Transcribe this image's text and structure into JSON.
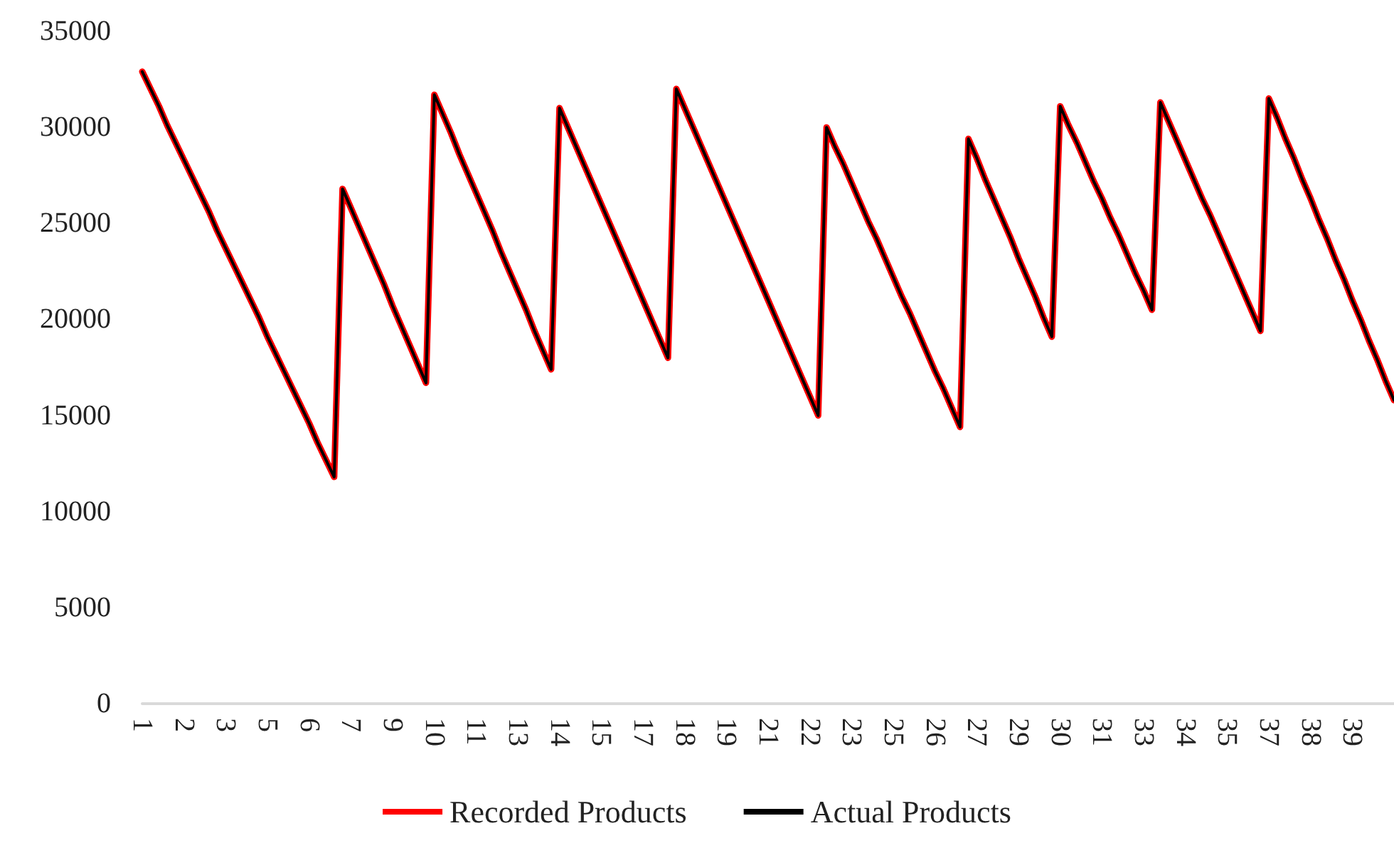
{
  "chart_data": {
    "type": "line",
    "categories": [
      "1",
      null,
      null,
      null,
      null,
      "2",
      null,
      null,
      null,
      null,
      "3",
      null,
      null,
      null,
      null,
      "5",
      null,
      null,
      null,
      null,
      "6",
      null,
      null,
      null,
      null,
      "7",
      null,
      null,
      null,
      null,
      "9",
      null,
      null,
      null,
      null,
      "10",
      null,
      null,
      null,
      null,
      "11",
      null,
      null,
      null,
      null,
      "13",
      null,
      null,
      null,
      null,
      "14",
      null,
      null,
      null,
      null,
      "15",
      null,
      null,
      null,
      null,
      "17",
      null,
      null,
      null,
      null,
      "18",
      null,
      null,
      null,
      null,
      "19",
      null,
      null,
      null,
      null,
      "21",
      null,
      null,
      null,
      null,
      "22",
      null,
      null,
      null,
      null,
      "23",
      null,
      null,
      null,
      null,
      "25",
      null,
      null,
      null,
      null,
      "26",
      null,
      null,
      null,
      null,
      "27",
      null,
      null,
      null,
      null,
      "29",
      null,
      null,
      null,
      null,
      "30",
      null,
      null,
      null,
      null,
      "31",
      null,
      null,
      null,
      null,
      "33",
      null,
      null,
      null,
      null,
      "34",
      null,
      null,
      null,
      null,
      "35",
      null,
      null,
      null,
      null,
      "37",
      null,
      null,
      null,
      null,
      "38",
      null,
      null,
      null,
      null,
      "39",
      null,
      null,
      null,
      null,
      null
    ],
    "series": [
      {
        "name": "Recorded Products",
        "color": "#ff0000",
        "values": [
          32900,
          32000,
          31100,
          30100,
          29200,
          28300,
          27400,
          26500,
          25600,
          24600,
          23700,
          22800,
          21900,
          21000,
          20100,
          19100,
          18200,
          17300,
          16400,
          15500,
          14600,
          13600,
          12700,
          11800,
          26800,
          25800,
          24800,
          23800,
          22800,
          21800,
          20700,
          19700,
          18700,
          17700,
          16700,
          31700,
          30700,
          29700,
          28600,
          27600,
          26600,
          25600,
          24600,
          23500,
          22500,
          21500,
          20500,
          19400,
          18400,
          17400,
          31000,
          30000,
          29000,
          28000,
          27000,
          26000,
          25000,
          24000,
          23000,
          22000,
          21000,
          20000,
          19000,
          18000,
          32000,
          31000,
          30000,
          29000,
          28000,
          27000,
          26000,
          25000,
          24000,
          23000,
          22000,
          21000,
          20000,
          19000,
          18000,
          17000,
          16000,
          15000,
          30000,
          29000,
          28100,
          27100,
          26100,
          25100,
          24200,
          23200,
          22200,
          21200,
          20300,
          19300,
          18300,
          17300,
          16400,
          15400,
          14400,
          29400,
          28400,
          27300,
          26300,
          25300,
          24300,
          23200,
          22200,
          21200,
          20100,
          19100,
          31100,
          30100,
          29200,
          28200,
          27200,
          26300,
          25300,
          24400,
          23400,
          22400,
          21500,
          20500,
          31300,
          30300,
          29300,
          28300,
          27300,
          26300,
          25400,
          24400,
          23400,
          22400,
          21400,
          20400,
          19400,
          31500,
          30500,
          29400,
          28400,
          27300,
          26300,
          25200,
          24200,
          23100,
          22100,
          21000,
          20000,
          18900,
          17900,
          16800,
          15800
        ]
      },
      {
        "name": "Actual Products",
        "color": "#000000",
        "values": [
          32900,
          32000,
          31100,
          30100,
          29200,
          28300,
          27400,
          26500,
          25600,
          24600,
          23700,
          22800,
          21900,
          21000,
          20100,
          19100,
          18200,
          17300,
          16400,
          15500,
          14600,
          13600,
          12700,
          11800,
          26800,
          25800,
          24800,
          23800,
          22800,
          21800,
          20700,
          19700,
          18700,
          17700,
          16700,
          31700,
          30700,
          29700,
          28600,
          27600,
          26600,
          25600,
          24600,
          23500,
          22500,
          21500,
          20500,
          19400,
          18400,
          17400,
          31000,
          30000,
          29000,
          28000,
          27000,
          26000,
          25000,
          24000,
          23000,
          22000,
          21000,
          20000,
          19000,
          18000,
          32000,
          31000,
          30000,
          29000,
          28000,
          27000,
          26000,
          25000,
          24000,
          23000,
          22000,
          21000,
          20000,
          19000,
          18000,
          17000,
          16000,
          15000,
          30000,
          29000,
          28100,
          27100,
          26100,
          25100,
          24200,
          23200,
          22200,
          21200,
          20300,
          19300,
          18300,
          17300,
          16400,
          15400,
          14400,
          29400,
          28400,
          27300,
          26300,
          25300,
          24300,
          23200,
          22200,
          21200,
          20100,
          19100,
          31100,
          30100,
          29200,
          28200,
          27200,
          26300,
          25300,
          24400,
          23400,
          22400,
          21500,
          20500,
          31300,
          30300,
          29300,
          28300,
          27300,
          26300,
          25400,
          24400,
          23400,
          22400,
          21400,
          20400,
          19400,
          31500,
          30500,
          29400,
          28400,
          27300,
          26300,
          25200,
          24200,
          23100,
          22100,
          21000,
          20000,
          18900,
          17900,
          16800,
          15800
        ]
      }
    ],
    "ylim": [
      0,
      35000
    ],
    "yticks": [
      0,
      5000,
      10000,
      15000,
      20000,
      25000,
      30000,
      35000
    ],
    "grid": false,
    "legend": "bottom",
    "marker": "none",
    "line_style": "solid"
  }
}
